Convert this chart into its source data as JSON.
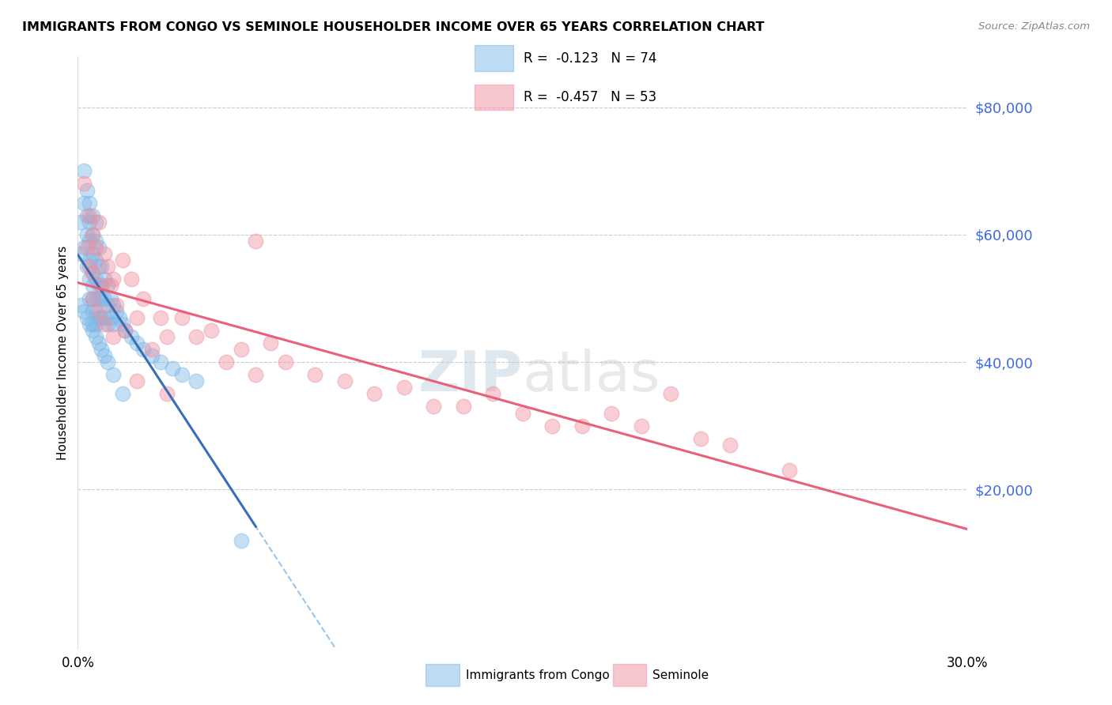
{
  "title": "IMMIGRANTS FROM CONGO VS SEMINOLE HOUSEHOLDER INCOME OVER 65 YEARS CORRELATION CHART",
  "source": "Source: ZipAtlas.com",
  "ylabel": "Householder Income Over 65 years",
  "xlim": [
    0.0,
    0.3
  ],
  "ylim": [
    -5000,
    88000
  ],
  "yticks": [
    20000,
    40000,
    60000,
    80000
  ],
  "ytick_labels": [
    "$20,000",
    "$40,000",
    "$60,000",
    "$80,000"
  ],
  "blue_R": "-0.123",
  "blue_N": "74",
  "pink_R": "-0.457",
  "pink_N": "53",
  "blue_color": "#7DB8E8",
  "pink_color": "#F090A0",
  "blue_line_color": "#3A6FB5",
  "pink_line_color": "#E8607A",
  "watermark": "ZIPatlas",
  "blue_scatter_x": [
    0.001,
    0.001,
    0.002,
    0.002,
    0.002,
    0.003,
    0.003,
    0.003,
    0.003,
    0.004,
    0.004,
    0.004,
    0.004,
    0.004,
    0.004,
    0.005,
    0.005,
    0.005,
    0.005,
    0.005,
    0.005,
    0.005,
    0.005,
    0.006,
    0.006,
    0.006,
    0.006,
    0.006,
    0.006,
    0.006,
    0.007,
    0.007,
    0.007,
    0.007,
    0.007,
    0.008,
    0.008,
    0.008,
    0.008,
    0.009,
    0.009,
    0.009,
    0.01,
    0.01,
    0.01,
    0.011,
    0.011,
    0.012,
    0.012,
    0.013,
    0.014,
    0.015,
    0.016,
    0.018,
    0.02,
    0.022,
    0.025,
    0.028,
    0.032,
    0.035,
    0.04,
    0.001,
    0.002,
    0.003,
    0.004,
    0.005,
    0.006,
    0.007,
    0.008,
    0.009,
    0.01,
    0.012,
    0.015,
    0.055
  ],
  "blue_scatter_y": [
    62000,
    57000,
    70000,
    65000,
    58000,
    67000,
    63000,
    60000,
    55000,
    65000,
    62000,
    59000,
    56000,
    53000,
    50000,
    63000,
    60000,
    57000,
    54000,
    52000,
    50000,
    48000,
    46000,
    62000,
    59000,
    56000,
    53000,
    50000,
    48000,
    46000,
    58000,
    55000,
    52000,
    50000,
    47000,
    55000,
    52000,
    50000,
    47000,
    53000,
    50000,
    47000,
    52000,
    49000,
    46000,
    50000,
    47000,
    49000,
    46000,
    48000,
    47000,
    46000,
    45000,
    44000,
    43000,
    42000,
    41000,
    40000,
    39000,
    38000,
    37000,
    49000,
    48000,
    47000,
    46000,
    45000,
    44000,
    43000,
    42000,
    41000,
    40000,
    38000,
    35000,
    12000
  ],
  "pink_scatter_x": [
    0.002,
    0.003,
    0.004,
    0.004,
    0.005,
    0.005,
    0.006,
    0.007,
    0.008,
    0.009,
    0.01,
    0.011,
    0.012,
    0.013,
    0.015,
    0.016,
    0.018,
    0.02,
    0.022,
    0.025,
    0.028,
    0.03,
    0.035,
    0.04,
    0.045,
    0.05,
    0.055,
    0.06,
    0.065,
    0.07,
    0.08,
    0.09,
    0.1,
    0.11,
    0.12,
    0.13,
    0.14,
    0.15,
    0.16,
    0.17,
    0.18,
    0.19,
    0.2,
    0.21,
    0.22,
    0.24,
    0.005,
    0.007,
    0.009,
    0.012,
    0.02,
    0.03,
    0.06
  ],
  "pink_scatter_y": [
    68000,
    58000,
    63000,
    55000,
    60000,
    54000,
    58000,
    62000,
    52000,
    57000,
    55000,
    52000,
    53000,
    49000,
    56000,
    45000,
    53000,
    47000,
    50000,
    42000,
    47000,
    44000,
    47000,
    44000,
    45000,
    40000,
    42000,
    38000,
    43000,
    40000,
    38000,
    37000,
    35000,
    36000,
    33000,
    33000,
    35000,
    32000,
    30000,
    30000,
    32000,
    30000,
    35000,
    28000,
    27000,
    23000,
    50000,
    48000,
    46000,
    44000,
    37000,
    35000,
    59000
  ]
}
